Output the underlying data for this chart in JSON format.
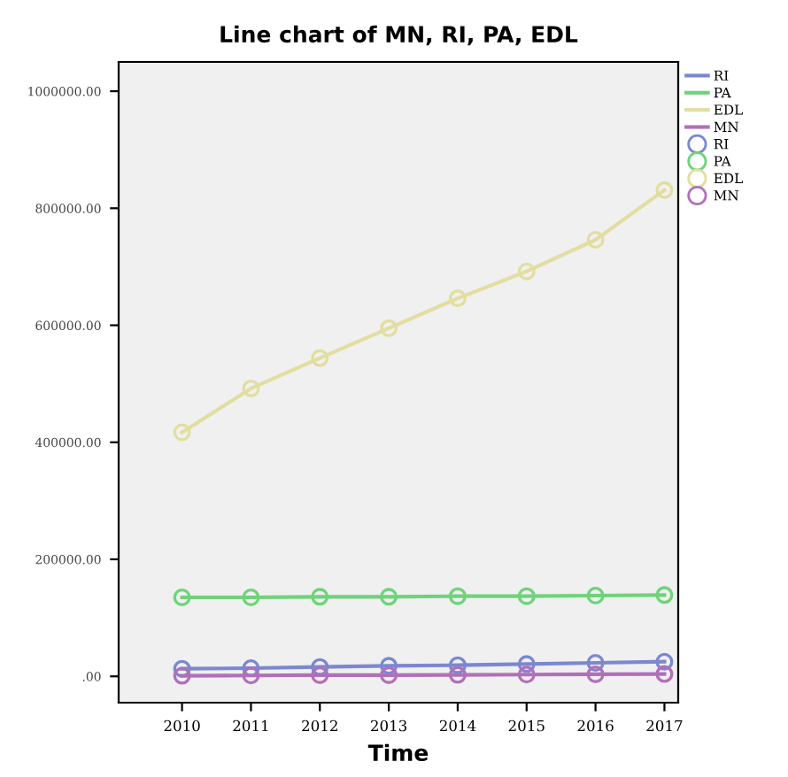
{
  "chart_data": {
    "type": "line",
    "title": "Line chart of MN, RI, PA, EDL",
    "xlabel": "Time",
    "categories": [
      "2010",
      "2011",
      "2012",
      "2013",
      "2014",
      "2015",
      "2016",
      "2017"
    ],
    "series": [
      {
        "name": "RI",
        "color": "#7b88d0",
        "values": [
          13000,
          14000,
          16000,
          18000,
          19000,
          21000,
          23000,
          25000
        ]
      },
      {
        "name": "PA",
        "color": "#6fd37a",
        "values": [
          135000,
          135000,
          136000,
          136000,
          137000,
          137000,
          138000,
          139000
        ]
      },
      {
        "name": "EDL",
        "color": "#e2dea0",
        "values": [
          417000,
          492000,
          544000,
          595000,
          646000,
          692000,
          746000,
          831000
        ]
      },
      {
        "name": "MN",
        "color": "#b070b8",
        "values": [
          1000,
          1500,
          2000,
          2000,
          2500,
          3000,
          3500,
          4000
        ]
      }
    ],
    "ylim": [
      -45000,
      1050000
    ],
    "yticks": [
      {
        "value": 0,
        "label": ".00"
      },
      {
        "value": 200000,
        "label": "200000.00"
      },
      {
        "value": 400000,
        "label": "400000.00"
      },
      {
        "value": 600000,
        "label": "600000.00"
      },
      {
        "value": 800000,
        "label": "800000.00"
      },
      {
        "value": 1000000,
        "label": "1000000.00"
      }
    ],
    "marker": "circle",
    "line_style": "solid",
    "grid": false,
    "legend": "right"
  }
}
